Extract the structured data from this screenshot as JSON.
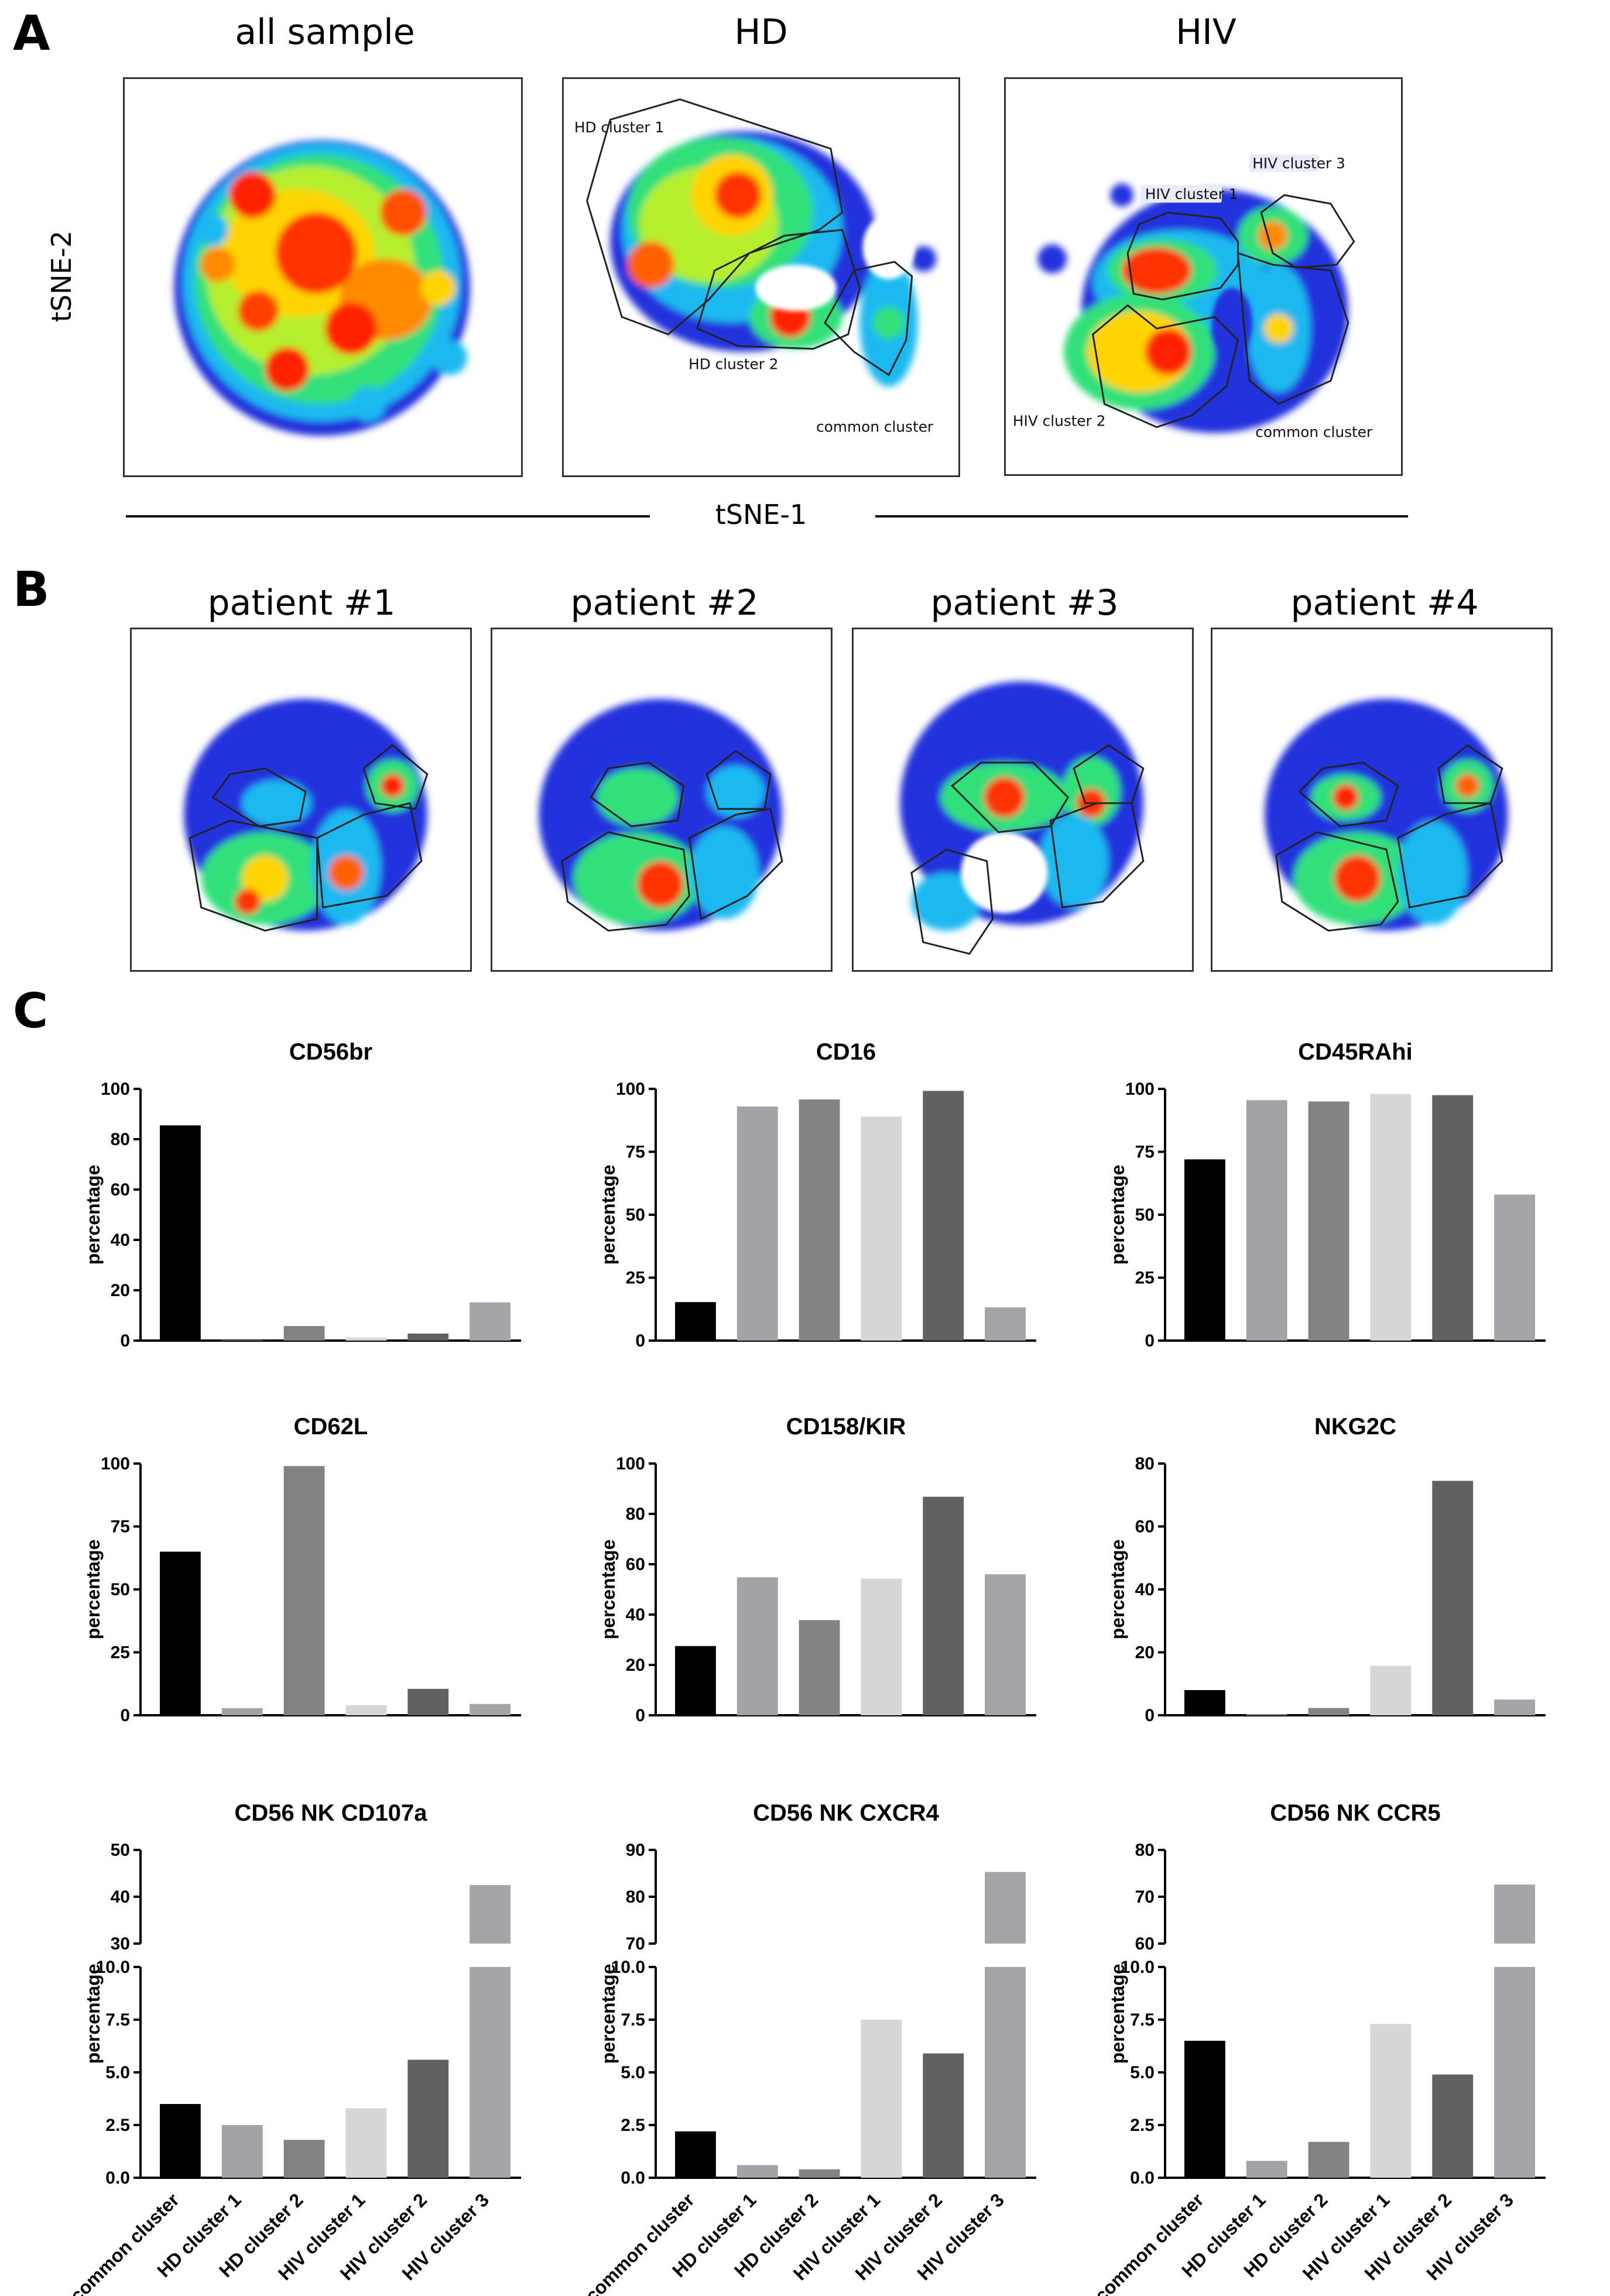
{
  "panel_letters": {
    "a": "A",
    "b": "B",
    "c": "C"
  },
  "panel_a": {
    "titles": [
      "all sample",
      "HD",
      "HIV"
    ],
    "y_axis": "tSNE-2",
    "x_axis": "tSNE-1",
    "hd_labels": [
      "HD  cluster 1",
      "HD cluster 2",
      "common cluster"
    ],
    "hiv_labels": [
      "HIV cluster 1",
      "HIV cluster 3",
      "HIV cluster 2",
      "common cluster"
    ]
  },
  "panel_b": {
    "titles": [
      "patient #1",
      "patient #2",
      "patient #3",
      "patient #4"
    ]
  },
  "colors": {
    "common cluster": "#000000",
    "HD cluster 1": "#a3a3a7",
    "HD cluster 2": "#838383",
    "HIV cluster 1": "#d6d6d6",
    "HIV cluster 2": "#616161",
    "HIV cluster 3": "#a5a5a9"
  },
  "chart_data": [
    {
      "type": "bar",
      "title": "CD56br",
      "ylabel": "percentage",
      "categories": [
        "common cluster",
        "HD cluster 1",
        "HD cluster 2",
        "HIV cluster 1",
        "HIV cluster 2",
        "HIV cluster 3"
      ],
      "values": [
        85.5,
        0.2,
        5.8,
        1.2,
        2.8,
        15.2
      ],
      "ylim": [
        0,
        100
      ],
      "yticks": [
        0,
        20,
        40,
        60,
        80,
        100
      ]
    },
    {
      "type": "bar",
      "title": "CD16",
      "ylabel": "percentage",
      "categories": [
        "common cluster",
        "HD cluster 1",
        "HD cluster 2",
        "HIV cluster 1",
        "HIV cluster 2",
        "HIV cluster 3"
      ],
      "values": [
        15.3,
        93,
        95.8,
        89,
        99.2,
        13.2
      ],
      "ylim": [
        0,
        100
      ],
      "yticks": [
        0,
        25,
        50,
        75,
        100
      ]
    },
    {
      "type": "bar",
      "title": "CD45RAhi",
      "ylabel": "percentage",
      "categories": [
        "common cluster",
        "HD cluster 1",
        "HD cluster 2",
        "HIV cluster 1",
        "HIV cluster 2",
        "HIV cluster 3"
      ],
      "values": [
        72,
        95.5,
        95,
        98,
        97.5,
        58
      ],
      "ylim": [
        0,
        100
      ],
      "yticks": [
        0,
        25,
        50,
        75,
        100
      ]
    },
    {
      "type": "bar",
      "title": "CD62L",
      "ylabel": "percentage",
      "categories": [
        "common cluster",
        "HD cluster 1",
        "HD cluster 2",
        "HIV cluster 1",
        "HIV cluster 2",
        "HIV cluster 3"
      ],
      "values": [
        65,
        2.8,
        99,
        4,
        10.5,
        4.5
      ],
      "ylim": [
        0,
        100
      ],
      "yticks": [
        0,
        25,
        50,
        75,
        100
      ]
    },
    {
      "type": "bar",
      "title": "CD158/KIR",
      "ylabel": "percentage",
      "categories": [
        "common cluster",
        "HD cluster 1",
        "HD cluster 2",
        "HIV cluster 1",
        "HIV cluster 2",
        "HIV cluster 3"
      ],
      "values": [
        27.5,
        54.8,
        37.8,
        54.3,
        86.8,
        56
      ],
      "ylim": [
        0,
        100
      ],
      "yticks": [
        0,
        20,
        40,
        60,
        80,
        100
      ]
    },
    {
      "type": "bar",
      "title": "NKG2C",
      "ylabel": "percentage",
      "categories": [
        "common cluster",
        "HD cluster 1",
        "HD cluster 2",
        "HIV cluster 1",
        "HIV cluster 2",
        "HIV cluster 3"
      ],
      "values": [
        8,
        0.3,
        2.3,
        15.7,
        74.5,
        5
      ],
      "ylim": [
        0,
        80
      ],
      "yticks": [
        0,
        20,
        40,
        60,
        80
      ]
    },
    {
      "type": "bar",
      "title": "CD56 NK CD107a",
      "ylabel": "percentage",
      "categories": [
        "common cluster",
        "HD cluster 1",
        "HD cluster 2",
        "HIV cluster 1",
        "HIV cluster 2",
        "HIV cluster 3"
      ],
      "values": [
        3.5,
        2.5,
        1.8,
        3.3,
        5.6,
        42.5
      ],
      "broken_axis": {
        "lower": [
          0,
          10
        ],
        "upper": [
          30,
          50
        ]
      },
      "yticks_lower": [
        "0.0",
        "2.5",
        "5.0",
        "7.5",
        "10.0"
      ],
      "yticks_upper": [
        "30",
        "40",
        "50"
      ]
    },
    {
      "type": "bar",
      "title": "CD56 NK CXCR4",
      "ylabel": "percentage",
      "categories": [
        "common cluster",
        "HD cluster 1",
        "HD cluster 2",
        "HIV cluster 1",
        "HIV cluster 2",
        "HIV cluster 3"
      ],
      "values": [
        2.2,
        0.6,
        0.4,
        7.5,
        5.9,
        85.3
      ],
      "broken_axis": {
        "lower": [
          0,
          10
        ],
        "upper": [
          70,
          90
        ]
      },
      "yticks_lower": [
        "0.0",
        "2.5",
        "5.0",
        "7.5",
        "10.0"
      ],
      "yticks_upper": [
        "70",
        "80",
        "90"
      ]
    },
    {
      "type": "bar",
      "title": "CD56 NK CCR5",
      "ylabel": "percentage",
      "categories": [
        "common cluster",
        "HD cluster 1",
        "HD cluster 2",
        "HIV cluster 1",
        "HIV cluster 2",
        "HIV cluster 3"
      ],
      "values": [
        6.5,
        0.8,
        1.7,
        7.3,
        4.9,
        72.6
      ],
      "broken_axis": {
        "lower": [
          0,
          10
        ],
        "upper": [
          60,
          80
        ]
      },
      "yticks_lower": [
        "0.0",
        "2.5",
        "5.0",
        "7.5",
        "10.0"
      ],
      "yticks_upper": [
        "60",
        "70",
        "80"
      ]
    }
  ]
}
